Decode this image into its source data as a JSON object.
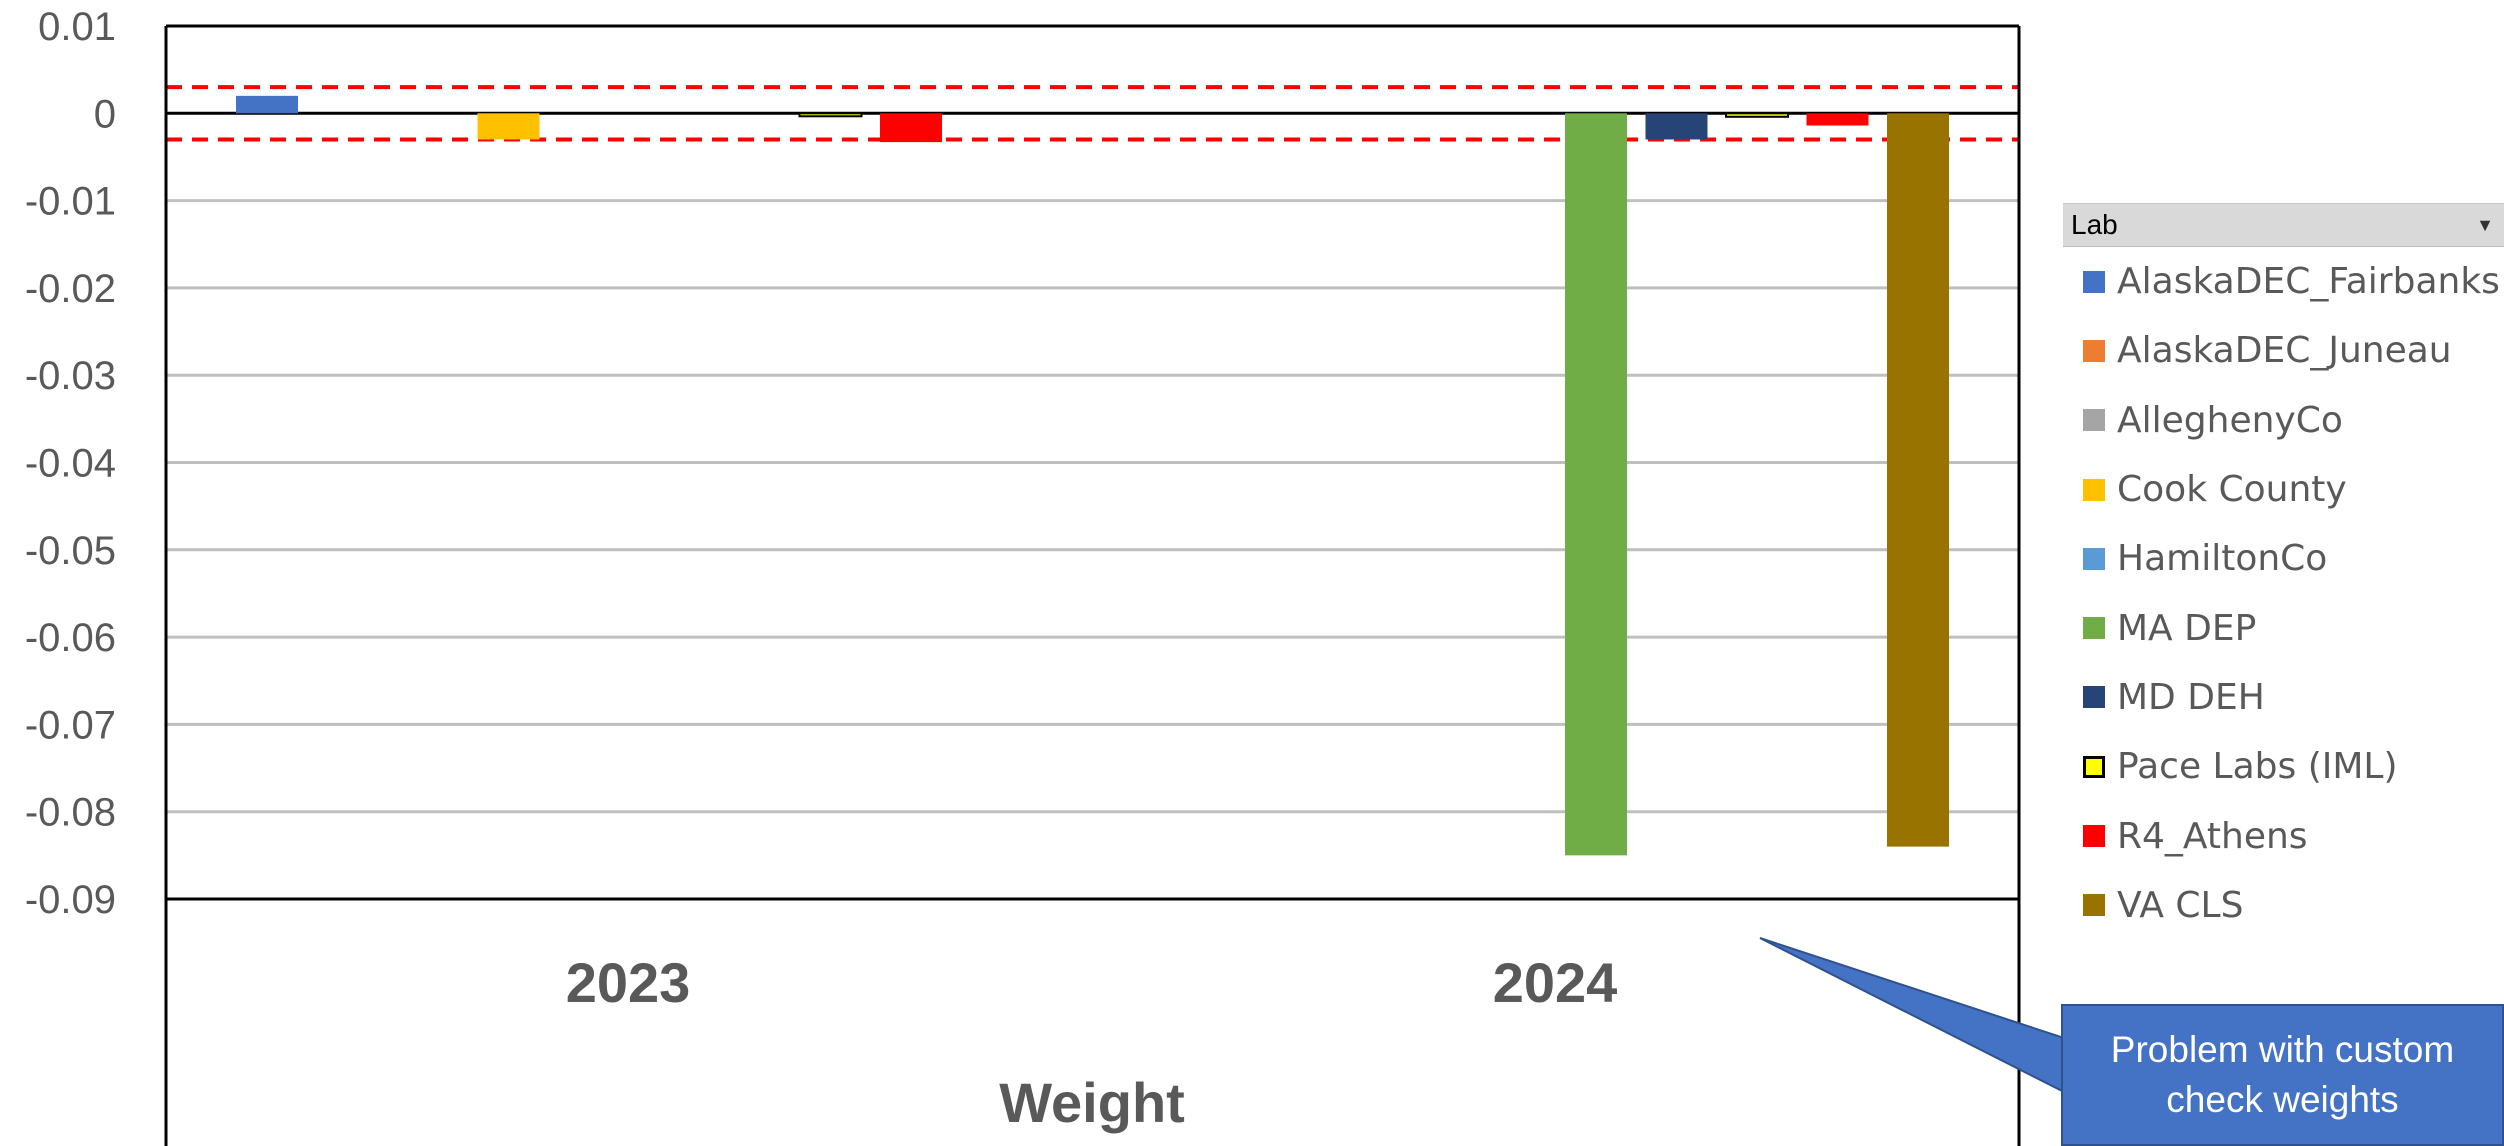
{
  "chart_data": {
    "type": "bar",
    "categories": [
      "2023",
      "2024"
    ],
    "xlabel": "Weight",
    "ylabel": "",
    "ylim": [
      -0.09,
      0.01
    ],
    "yticks": [
      "0.01",
      "0",
      "-0.01",
      "-0.02",
      "-0.03",
      "-0.04",
      "-0.05",
      "-0.06",
      "-0.07",
      "-0.08",
      "-0.09"
    ],
    "reference_lines": [
      0.003,
      -0.003
    ],
    "legend_title": "Lab",
    "legend_placement": "right",
    "series": [
      {
        "name": "AlaskaDEC_Fairbanks",
        "color": "#4472C4",
        "values": [
          0.002,
          null
        ]
      },
      {
        "name": "AlaskaDEC_Juneau",
        "color": "#ED7D31",
        "values": [
          null,
          null
        ]
      },
      {
        "name": "AlleghenyCo",
        "color": "#A5A5A5",
        "values": [
          null,
          null
        ]
      },
      {
        "name": "Cook County",
        "color": "#FFC000",
        "values": [
          -0.003,
          null
        ]
      },
      {
        "name": "HamiltonCo",
        "color": "#5B9BD5",
        "values": [
          null,
          null
        ]
      },
      {
        "name": "MA DEP",
        "color": "#70AD47",
        "values": [
          null,
          -0.085
        ]
      },
      {
        "name": "MD DEH",
        "color": "#264478",
        "values": [
          null,
          -0.003
        ]
      },
      {
        "name": "Pace Labs (IML)",
        "color": "#FFFF00",
        "border": "#000000",
        "values": [
          -0.0003,
          -0.0004
        ]
      },
      {
        "name": "R4_Athens",
        "color": "#FF0000",
        "values": [
          -0.0033,
          -0.0014
        ]
      },
      {
        "name": "VA CLS",
        "color": "#997300",
        "values": [
          null,
          -0.084
        ]
      }
    ],
    "annotation": {
      "text": "Problem with custom check weights",
      "color": "#4472C4"
    }
  }
}
